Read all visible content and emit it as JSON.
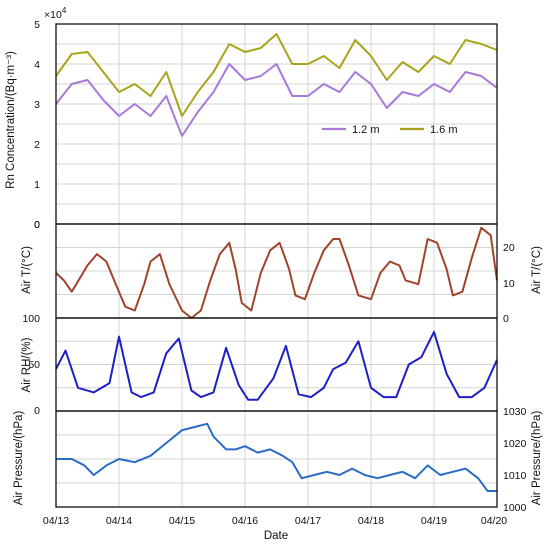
{
  "chart_data": [
    {
      "type": "line",
      "ylabel": "Rn Concentration/(Bq·m⁻³)",
      "exponent_label": "×10",
      "exponent_power": "4",
      "ylim": [
        0,
        50000
      ],
      "yticks": [
        "0",
        "1",
        "2",
        "3",
        "4",
        "5"
      ],
      "legend_position": "inside-right",
      "x": [
        0,
        0.25,
        0.5,
        0.75,
        1,
        1.25,
        1.5,
        1.75,
        2,
        2.25,
        2.5,
        2.75,
        3,
        3.25,
        3.5,
        3.75,
        4,
        4.25,
        4.5,
        4.75,
        5,
        5.25,
        5.5,
        5.75,
        6,
        6.25,
        6.5,
        6.75,
        7
      ],
      "series": [
        {
          "name": "1.2 m",
          "color": "#a77ad9",
          "values": [
            30000,
            35000,
            36000,
            31000,
            27000,
            30000,
            27000,
            32000,
            22000,
            28000,
            33000,
            40000,
            36000,
            37000,
            40000,
            32000,
            32000,
            35000,
            33000,
            38000,
            35000,
            29000,
            33000,
            32000,
            35000,
            33000,
            38000,
            37000,
            34000
          ]
        },
        {
          "name": "1.6 m",
          "color": "#a8a51c",
          "values": [
            37000,
            42500,
            43000,
            38000,
            33000,
            35000,
            32000,
            38000,
            27000,
            33000,
            38000,
            45000,
            43000,
            44000,
            47500,
            40000,
            40000,
            42000,
            39000,
            46000,
            42000,
            36000,
            40500,
            38000,
            42000,
            40000,
            46000,
            45000,
            43500
          ]
        }
      ]
    },
    {
      "type": "line",
      "ylabel": "Air T/(°C)",
      "ylabel_right": "Air T/(°C)",
      "ylim": [
        0,
        25
      ],
      "yticks_left": [
        "0"
      ],
      "yticks_right": [
        "0",
        "10",
        "20"
      ],
      "x": [
        0,
        0.125,
        0.25,
        0.5,
        0.65,
        0.8,
        0.95,
        1.1,
        1.25,
        1.4,
        1.5,
        1.65,
        1.8,
        2,
        2.15,
        2.3,
        2.45,
        2.6,
        2.75,
        2.85,
        2.95,
        3.1,
        3.25,
        3.4,
        3.55,
        3.7,
        3.8,
        3.95,
        4.1,
        4.25,
        4.4,
        4.5,
        4.65,
        4.8,
        5,
        5.15,
        5.3,
        5.45,
        5.55,
        5.75,
        5.9,
        6.05,
        6.2,
        6.3,
        6.45,
        6.6,
        6.75,
        6.9,
        7
      ],
      "series": [
        {
          "name": "",
          "color": "#a0442c",
          "values": [
            12,
            10,
            7,
            14,
            17,
            15,
            9,
            3,
            2,
            9,
            15,
            17,
            9,
            2,
            -3,
            2,
            10,
            17,
            20,
            13,
            4,
            2,
            12,
            18,
            20,
            13,
            6,
            5,
            12,
            18,
            21,
            21,
            14,
            6,
            5,
            12,
            15,
            14,
            10,
            9,
            21,
            20,
            13,
            6,
            7,
            16,
            24,
            22,
            10
          ]
        }
      ]
    },
    {
      "type": "line",
      "ylabel": "Air RH/(%)",
      "ylim": [
        0,
        100
      ],
      "yticks": [
        "0",
        "50",
        "100"
      ],
      "x": [
        0,
        0.15,
        0.35,
        0.6,
        0.85,
        1,
        1.2,
        1.35,
        1.55,
        1.75,
        1.95,
        2.15,
        2.3,
        2.5,
        2.7,
        2.9,
        3.05,
        3.2,
        3.45,
        3.65,
        3.85,
        4.05,
        4.25,
        4.4,
        4.6,
        4.8,
        5,
        5.2,
        5.4,
        5.6,
        5.8,
        6,
        6.2,
        6.4,
        6.6,
        6.8,
        7
      ],
      "series": [
        {
          "name": "",
          "color": "#1f1fc6",
          "values": [
            45,
            65,
            25,
            20,
            30,
            80,
            20,
            15,
            20,
            62,
            78,
            22,
            15,
            20,
            68,
            28,
            12,
            12,
            35,
            70,
            18,
            15,
            25,
            45,
            52,
            75,
            25,
            15,
            15,
            50,
            58,
            85,
            40,
            15,
            15,
            25,
            55
          ]
        }
      ]
    },
    {
      "type": "line",
      "ylabel": "Air Pressure/(hPa)",
      "ylabel_right": "Air Pressure/(hPa)",
      "ylim": [
        1000,
        1030
      ],
      "yticks_right": [
        "1000",
        "1010",
        "1020",
        "1030"
      ],
      "xlabel": "Date",
      "xticks": [
        "04/13",
        "04/14",
        "04/15",
        "04/16",
        "04/17",
        "04/18",
        "04/19",
        "04/20"
      ],
      "x": [
        0,
        0.25,
        0.45,
        0.6,
        0.8,
        1,
        1.25,
        1.5,
        1.75,
        2,
        2.2,
        2.4,
        2.5,
        2.7,
        2.85,
        3,
        3.2,
        3.4,
        3.6,
        3.75,
        3.9,
        4.1,
        4.3,
        4.5,
        4.7,
        4.9,
        5.1,
        5.3,
        5.5,
        5.7,
        5.9,
        6.1,
        6.3,
        6.5,
        6.7,
        6.85,
        7
      ],
      "series": [
        {
          "name": "",
          "color": "#2b6cc4",
          "values": [
            1015,
            1015,
            1013,
            1010,
            1013,
            1015,
            1014,
            1016,
            1020,
            1024,
            1025,
            1026,
            1022,
            1018,
            1018,
            1019,
            1017,
            1018,
            1016,
            1014,
            1009,
            1010,
            1011,
            1010,
            1012,
            1010,
            1009,
            1010,
            1011,
            1009,
            1013,
            1010,
            1011,
            1012,
            1009,
            1005,
            1005
          ]
        }
      ]
    }
  ]
}
